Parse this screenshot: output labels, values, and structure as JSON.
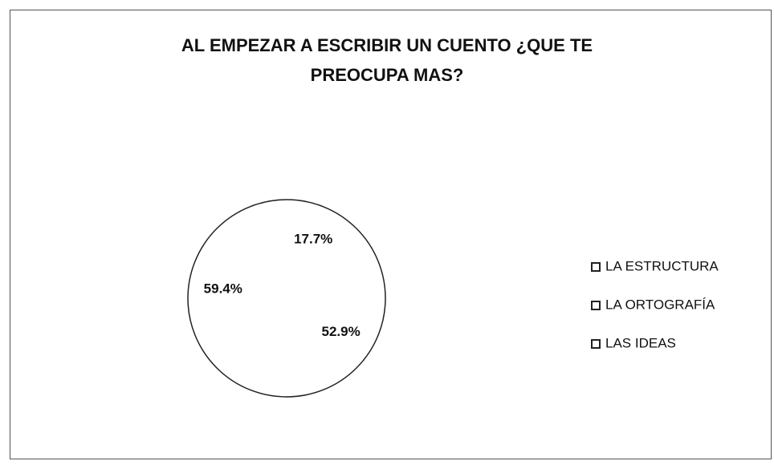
{
  "chart_data": {
    "type": "pie",
    "title": [
      "AL EMPEZAR A ESCRIBIR UN CUENTO ¿QUE TE",
      "PREOCUPA MAS?"
    ],
    "categories": [
      "LA ESTRUCTURA",
      "LA ORTOGRAFÍA",
      "LAS IDEAS"
    ],
    "values": [
      17.7,
      52.9,
      59.4
    ],
    "value_labels": [
      "17.7%",
      "52.9%",
      "59.4%"
    ],
    "colors": [
      "#ffffff",
      "#ffffff",
      "#ffffff"
    ],
    "legend": "right"
  }
}
